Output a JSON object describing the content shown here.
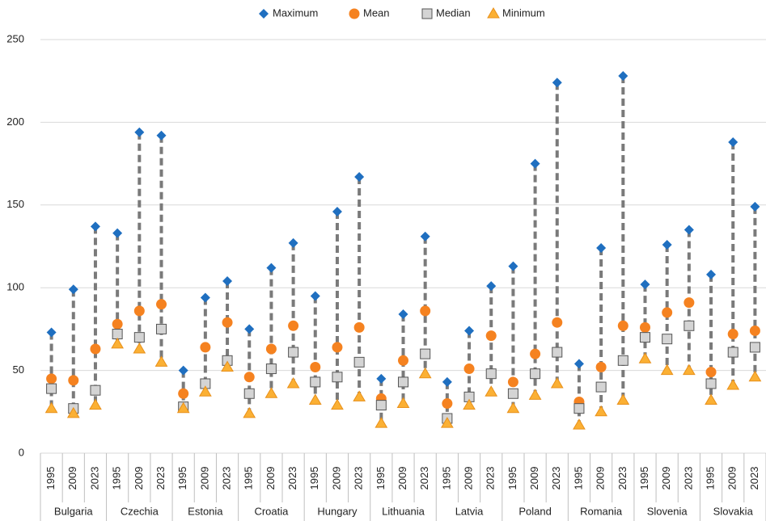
{
  "chart_data": {
    "type": "range-dot",
    "categories": [
      "1995",
      "2009",
      "2023",
      "1995",
      "2009",
      "2023",
      "1995",
      "2009",
      "2023",
      "1995",
      "2009",
      "2023",
      "1995",
      "2009",
      "2023",
      "1995",
      "2009",
      "2023",
      "1995",
      "2009",
      "2023",
      "1995",
      "2009",
      "2023",
      "1995",
      "2009",
      "2023",
      "1995",
      "2009",
      "2023",
      "1995",
      "2009",
      "2023"
    ],
    "groups": [
      "Bulgaria",
      "Czechia",
      "Estonia",
      "Croatia",
      "Hungary",
      "Lithuania",
      "Latvia",
      "Poland",
      "Romania",
      "Slovenia",
      "Slovakia"
    ],
    "series": [
      {
        "name": "Maximum",
        "color": "#1f6fc0",
        "marker": "diamond",
        "values": [
          73,
          99,
          137,
          133,
          194,
          192,
          50,
          94,
          104,
          75,
          112,
          127,
          95,
          146,
          167,
          45,
          84,
          131,
          43,
          74,
          101,
          113,
          175,
          224,
          54,
          124,
          228,
          102,
          126,
          135,
          108,
          188,
          149
        ]
      },
      {
        "name": "Mean",
        "color": "#f58220",
        "marker": "circle",
        "values": [
          45,
          44,
          63,
          78,
          86,
          90,
          36,
          64,
          79,
          46,
          63,
          77,
          52,
          64,
          76,
          33,
          56,
          86,
          30,
          51,
          71,
          43,
          60,
          79,
          31,
          52,
          77,
          76,
          85,
          91,
          49,
          72,
          74
        ]
      },
      {
        "name": "Median",
        "color": "#d4d4d4",
        "marker": "square",
        "values": [
          39,
          27,
          38,
          72,
          70,
          75,
          28,
          42,
          56,
          36,
          51,
          61,
          43,
          46,
          55,
          29,
          43,
          60,
          21,
          34,
          48,
          36,
          48,
          61,
          27,
          40,
          56,
          70,
          69,
          77,
          42,
          61,
          64
        ]
      },
      {
        "name": "Minimum",
        "color": "#fbb034",
        "marker": "triangle",
        "values": [
          27,
          24,
          29,
          66,
          63,
          55,
          27,
          37,
          52,
          24,
          36,
          42,
          32,
          29,
          34,
          18,
          30,
          48,
          18,
          29,
          37,
          27,
          35,
          42,
          17,
          25,
          32,
          57,
          50,
          50,
          32,
          41,
          46
        ]
      }
    ],
    "ylim": [
      0,
      250
    ],
    "yticks": [
      0,
      50,
      100,
      150,
      200,
      250
    ],
    "grid": true,
    "legend": "top"
  }
}
